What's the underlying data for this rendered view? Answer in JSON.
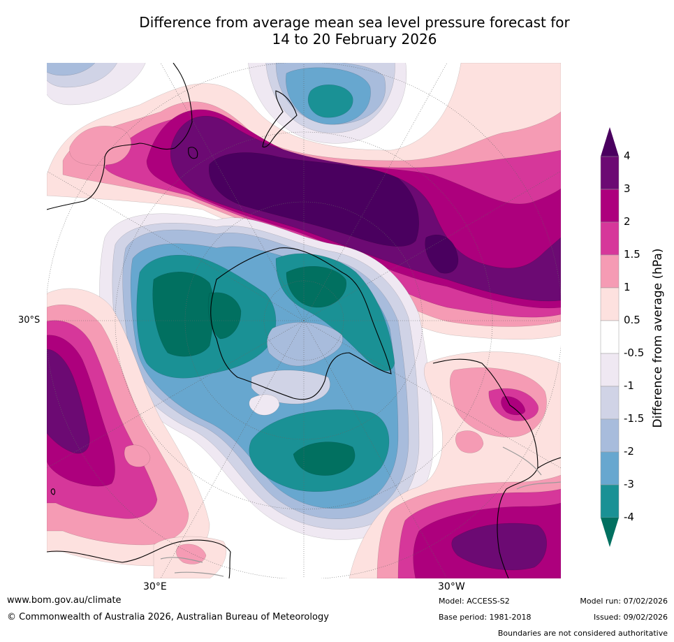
{
  "title": {
    "line1": "Difference from average mean sea level pressure forecast for",
    "line2": "14 to 20 February 2026"
  },
  "axes": {
    "lat_label": "30°S",
    "lon_label_left": "30°E",
    "lon_label_right": "30°W"
  },
  "colorbar": {
    "title": "Difference from average (hPa)",
    "levels": [
      "4",
      "3",
      "2",
      "1.5",
      "1",
      "0.5",
      "-0.5",
      "-1",
      "-1.5",
      "-2",
      "-3",
      "-4"
    ],
    "colors": {
      "over4": "#4a005f",
      "c3_4": "#6c0a73",
      "c2_3": "#ad007d",
      "c15_2": "#d6379a",
      "c1_15": "#f59bb4",
      "c05_1": "#fde1df",
      "neutral": "#ffffff",
      "m05_m1": "#efe8f2",
      "m1_m15": "#d0d3e6",
      "m15_m2": "#a8bcdc",
      "m2_m3": "#67a7cf",
      "m3_m4": "#1a9195",
      "under_m4": "#017060"
    }
  },
  "footer": {
    "website": "www.bom.gov.au/climate",
    "copyright": "© Commonwealth of Australia 2026, Australian Bureau of Meteorology",
    "model": "Model: ACCESS-S2",
    "base_period": "Base period: 1981-2018",
    "model_run": "Model run: 07/02/2026",
    "issued": "Issued: 09/02/2026",
    "disclaimer": "Boundaries are not considered authoritative"
  }
}
